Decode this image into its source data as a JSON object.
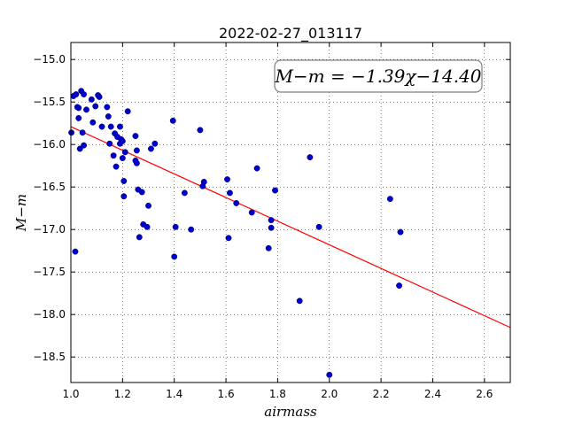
{
  "chart_data": {
    "type": "scatter",
    "title": "2022-02-27_013117",
    "xlabel": "airmass",
    "ylabel": "M−m",
    "xlim": [
      1.0,
      2.7
    ],
    "ylim": [
      -18.8,
      -14.8
    ],
    "xticks": [
      1.0,
      1.2,
      1.4,
      1.6,
      1.8,
      2.0,
      2.2,
      2.4,
      2.6
    ],
    "xtick_labels": [
      "1.0",
      "1.2",
      "1.4",
      "1.6",
      "1.8",
      "2.0",
      "2.2",
      "2.4",
      "2.6"
    ],
    "yticks": [
      -15.0,
      -15.5,
      -16.0,
      -16.5,
      -17.0,
      -17.5,
      -18.0,
      -18.5
    ],
    "ytick_labels": [
      "−15.0",
      "−15.5",
      "−16.0",
      "−16.5",
      "−17.0",
      "−17.5",
      "−18.0",
      "−18.5"
    ],
    "grid": true,
    "annotation": "M−m = −1.39χ−14.40",
    "annotation_placement": "top-right",
    "point_color": "#0000cc",
    "fit_color": "#ff0000",
    "fit": {
      "slope": -1.39,
      "intercept": -14.4,
      "x_range": [
        1.0,
        2.7
      ]
    },
    "points": [
      [
        1.002,
        -15.86
      ],
      [
        1.01,
        -15.43
      ],
      [
        1.017,
        -17.26
      ],
      [
        1.02,
        -15.41
      ],
      [
        1.025,
        -15.56
      ],
      [
        1.03,
        -15.69
      ],
      [
        1.03,
        -15.57
      ],
      [
        1.035,
        -16.05
      ],
      [
        1.04,
        -15.37
      ],
      [
        1.045,
        -15.86
      ],
      [
        1.05,
        -15.41
      ],
      [
        1.05,
        -16.01
      ],
      [
        1.06,
        -15.59
      ],
      [
        1.08,
        -15.47
      ],
      [
        1.085,
        -15.74
      ],
      [
        1.095,
        -15.55
      ],
      [
        1.105,
        -15.42
      ],
      [
        1.11,
        -15.44
      ],
      [
        1.12,
        -15.79
      ],
      [
        1.14,
        -15.56
      ],
      [
        1.145,
        -15.67
      ],
      [
        1.15,
        -15.99
      ],
      [
        1.155,
        -15.79
      ],
      [
        1.165,
        -16.13
      ],
      [
        1.17,
        -15.87
      ],
      [
        1.175,
        -16.26
      ],
      [
        1.18,
        -15.91
      ],
      [
        1.19,
        -15.99
      ],
      [
        1.19,
        -15.79
      ],
      [
        1.195,
        -15.94
      ],
      [
        1.2,
        -16.16
      ],
      [
        1.2,
        -15.96
      ],
      [
        1.205,
        -16.43
      ],
      [
        1.205,
        -16.61
      ],
      [
        1.21,
        -16.09
      ],
      [
        1.22,
        -15.61
      ],
      [
        1.25,
        -16.19
      ],
      [
        1.25,
        -15.9
      ],
      [
        1.255,
        -16.22
      ],
      [
        1.255,
        -16.07
      ],
      [
        1.26,
        -16.53
      ],
      [
        1.265,
        -17.09
      ],
      [
        1.275,
        -16.56
      ],
      [
        1.28,
        -16.94
      ],
      [
        1.295,
        -16.97
      ],
      [
        1.3,
        -16.72
      ],
      [
        1.31,
        -16.05
      ],
      [
        1.325,
        -15.99
      ],
      [
        1.395,
        -15.72
      ],
      [
        1.4,
        -17.32
      ],
      [
        1.405,
        -16.97
      ],
      [
        1.44,
        -16.57
      ],
      [
        1.465,
        -17.0
      ],
      [
        1.5,
        -15.83
      ],
      [
        1.51,
        -16.49
      ],
      [
        1.515,
        -16.44
      ],
      [
        1.605,
        -16.41
      ],
      [
        1.61,
        -17.1
      ],
      [
        1.615,
        -16.57
      ],
      [
        1.64,
        -16.69
      ],
      [
        1.7,
        -16.8
      ],
      [
        1.72,
        -16.28
      ],
      [
        1.765,
        -17.22
      ],
      [
        1.775,
        -16.98
      ],
      [
        1.775,
        -16.89
      ],
      [
        1.79,
        -16.54
      ],
      [
        1.885,
        -17.84
      ],
      [
        1.925,
        -16.15
      ],
      [
        1.96,
        -16.97
      ],
      [
        2.0,
        -18.71
      ],
      [
        2.235,
        -16.64
      ],
      [
        2.27,
        -17.66
      ],
      [
        2.275,
        -17.03
      ]
    ]
  }
}
